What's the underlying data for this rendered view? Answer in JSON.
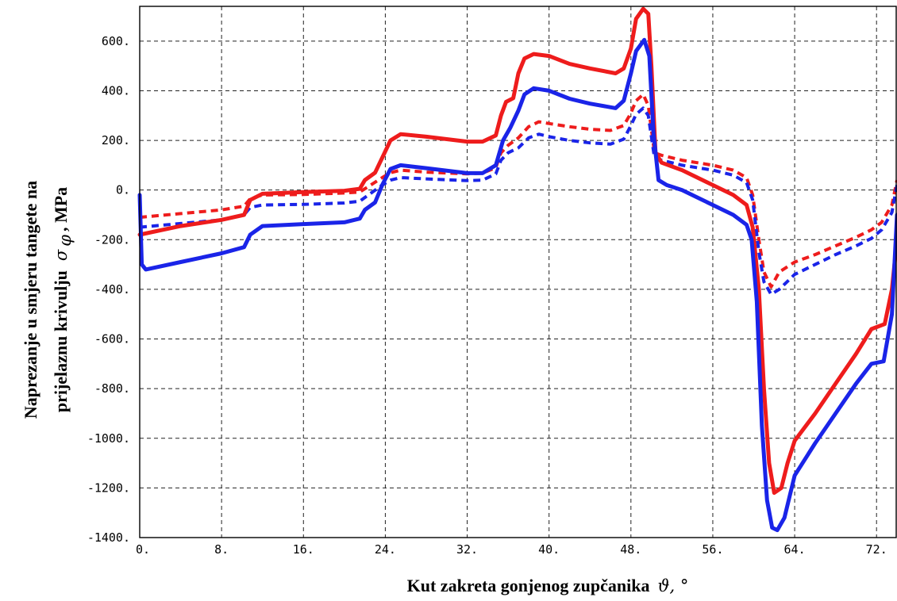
{
  "chart_data": {
    "type": "line",
    "xlabel": "Kut zakreta gonjenog zupčanika ϑ, °",
    "xlabel_text": "Kut zakreta gonjenog zupčanika",
    "xlabel_symbol": "ϑ, °",
    "ylabel_line1": "Naprezanje  u smjeru tangete na",
    "ylabel_line2_text": "prijelaznu krivulju",
    "ylabel_line2_symbol": "σ",
    "ylabel_line2_sub": "φ",
    "ylabel_line2_unit": ", MPa",
    "xlim": [
      0,
      74
    ],
    "ylim": [
      -1400,
      740
    ],
    "x_ticks": [
      0,
      8,
      16,
      24,
      32,
      40,
      48,
      56,
      64,
      72
    ],
    "x_tick_labels": [
      "0.",
      "8.",
      "16.",
      "24.",
      "32.",
      "40.",
      "48.",
      "56.",
      "64.",
      "72."
    ],
    "y_ticks": [
      600,
      400,
      200,
      0,
      -200,
      -400,
      -600,
      -800,
      -1000,
      -1200,
      -1400
    ],
    "y_tick_labels": [
      "600.",
      "400.",
      "200.",
      "0.",
      "-200.",
      "-400.",
      "-600.",
      "-800.",
      "-1000.",
      "-1200.",
      "-1400."
    ],
    "grid": true,
    "series": [
      {
        "color": "#ee1c1c",
        "style": "solid",
        "points": [
          [
            0,
            -180
          ],
          [
            4,
            -145
          ],
          [
            8,
            -120
          ],
          [
            10.2,
            -100
          ],
          [
            10.8,
            -40
          ],
          [
            12,
            -15
          ],
          [
            16,
            -8
          ],
          [
            20,
            -3
          ],
          [
            21.5,
            5
          ],
          [
            22,
            40
          ],
          [
            23,
            70
          ],
          [
            23.7,
            130
          ],
          [
            24.5,
            200
          ],
          [
            25.5,
            225
          ],
          [
            28,
            215
          ],
          [
            32,
            195
          ],
          [
            33.5,
            195
          ],
          [
            34.8,
            220
          ],
          [
            35.3,
            300
          ],
          [
            35.8,
            355
          ],
          [
            36.5,
            370
          ],
          [
            37,
            470
          ],
          [
            37.6,
            530
          ],
          [
            38.5,
            548
          ],
          [
            40,
            540
          ],
          [
            42,
            508
          ],
          [
            44,
            490
          ],
          [
            46.5,
            470
          ],
          [
            47.3,
            490
          ],
          [
            48,
            570
          ],
          [
            48.5,
            690
          ],
          [
            49.2,
            730
          ],
          [
            49.7,
            710
          ],
          [
            50,
            500
          ],
          [
            50.4,
            150
          ],
          [
            51,
            110
          ],
          [
            53,
            80
          ],
          [
            56,
            20
          ],
          [
            58,
            -20
          ],
          [
            59.3,
            -60
          ],
          [
            59.9,
            -150
          ],
          [
            60.5,
            -400
          ],
          [
            61,
            -800
          ],
          [
            61.5,
            -1100
          ],
          [
            62,
            -1220
          ],
          [
            62.7,
            -1200
          ],
          [
            63.3,
            -1100
          ],
          [
            64,
            -1010
          ],
          [
            66,
            -900
          ],
          [
            68,
            -780
          ],
          [
            70,
            -660
          ],
          [
            71.5,
            -560
          ],
          [
            72.8,
            -540
          ],
          [
            73.5,
            -400
          ],
          [
            74,
            -200
          ]
        ]
      },
      {
        "color": "#1a24e8",
        "style": "solid",
        "points": [
          [
            0,
            -20
          ],
          [
            0.2,
            -300
          ],
          [
            0.6,
            -320
          ],
          [
            4,
            -290
          ],
          [
            8,
            -255
          ],
          [
            10.2,
            -230
          ],
          [
            10.8,
            -180
          ],
          [
            12,
            -145
          ],
          [
            16,
            -137
          ],
          [
            20,
            -130
          ],
          [
            21.5,
            -115
          ],
          [
            22,
            -80
          ],
          [
            23,
            -50
          ],
          [
            23.7,
            20
          ],
          [
            24.5,
            85
          ],
          [
            25.5,
            100
          ],
          [
            28,
            88
          ],
          [
            32,
            68
          ],
          [
            33.5,
            68
          ],
          [
            34.8,
            100
          ],
          [
            35.5,
            200
          ],
          [
            36.2,
            250
          ],
          [
            37,
            320
          ],
          [
            37.6,
            385
          ],
          [
            38.5,
            410
          ],
          [
            40,
            400
          ],
          [
            42,
            368
          ],
          [
            44,
            348
          ],
          [
            46.5,
            330
          ],
          [
            47.3,
            360
          ],
          [
            48,
            470
          ],
          [
            48.5,
            560
          ],
          [
            49.3,
            605
          ],
          [
            49.8,
            540
          ],
          [
            50.2,
            230
          ],
          [
            50.7,
            40
          ],
          [
            51.5,
            20
          ],
          [
            53,
            0
          ],
          [
            56,
            -60
          ],
          [
            58,
            -100
          ],
          [
            59.3,
            -140
          ],
          [
            59.8,
            -200
          ],
          [
            60.3,
            -450
          ],
          [
            60.8,
            -950
          ],
          [
            61.3,
            -1250
          ],
          [
            61.8,
            -1360
          ],
          [
            62.3,
            -1370
          ],
          [
            63,
            -1320
          ],
          [
            64,
            -1150
          ],
          [
            66,
            -1020
          ],
          [
            68,
            -900
          ],
          [
            70,
            -780
          ],
          [
            71.5,
            -700
          ],
          [
            72.7,
            -690
          ],
          [
            73.5,
            -500
          ],
          [
            74,
            -100
          ]
        ]
      },
      {
        "color": "#ee1c1c",
        "style": "dashed",
        "points": [
          [
            0,
            -110
          ],
          [
            4,
            -95
          ],
          [
            8,
            -80
          ],
          [
            10.2,
            -65
          ],
          [
            10.8,
            -35
          ],
          [
            12,
            -20
          ],
          [
            16,
            -18
          ],
          [
            20,
            -12
          ],
          [
            21.5,
            -8
          ],
          [
            22,
            5
          ],
          [
            23.7,
            50
          ],
          [
            24.5,
            70
          ],
          [
            25.5,
            80
          ],
          [
            28,
            72
          ],
          [
            32,
            65
          ],
          [
            33.5,
            68
          ],
          [
            34.8,
            90
          ],
          [
            35.3,
            150
          ],
          [
            36,
            180
          ],
          [
            37,
            210
          ],
          [
            38,
            255
          ],
          [
            39,
            275
          ],
          [
            40,
            268
          ],
          [
            42,
            255
          ],
          [
            44,
            245
          ],
          [
            46,
            240
          ],
          [
            47.3,
            260
          ],
          [
            48,
            310
          ],
          [
            48.5,
            360
          ],
          [
            49.2,
            385
          ],
          [
            49.7,
            340
          ],
          [
            50.3,
            150
          ],
          [
            51,
            140
          ],
          [
            53,
            120
          ],
          [
            56,
            100
          ],
          [
            58,
            80
          ],
          [
            59.3,
            50
          ],
          [
            59.9,
            -20
          ],
          [
            60.5,
            -200
          ],
          [
            61,
            -330
          ],
          [
            61.7,
            -390
          ],
          [
            62.5,
            -330
          ],
          [
            64,
            -290
          ],
          [
            66,
            -260
          ],
          [
            68,
            -225
          ],
          [
            70,
            -190
          ],
          [
            71.5,
            -160
          ],
          [
            72.5,
            -130
          ],
          [
            73.5,
            -60
          ],
          [
            74,
            40
          ]
        ]
      },
      {
        "color": "#1a24e8",
        "style": "dashed",
        "points": [
          [
            0,
            -150
          ],
          [
            4,
            -135
          ],
          [
            8,
            -120
          ],
          [
            10.2,
            -100
          ],
          [
            10.8,
            -70
          ],
          [
            12,
            -60
          ],
          [
            16,
            -58
          ],
          [
            20,
            -52
          ],
          [
            21.5,
            -45
          ],
          [
            22,
            -30
          ],
          [
            23.7,
            20
          ],
          [
            24.5,
            40
          ],
          [
            25.5,
            50
          ],
          [
            28,
            45
          ],
          [
            32,
            38
          ],
          [
            33.5,
            40
          ],
          [
            34.8,
            65
          ],
          [
            35.3,
            120
          ],
          [
            36,
            150
          ],
          [
            37,
            170
          ],
          [
            38,
            210
          ],
          [
            39,
            225
          ],
          [
            40,
            215
          ],
          [
            42,
            200
          ],
          [
            44,
            190
          ],
          [
            46,
            185
          ],
          [
            47.3,
            205
          ],
          [
            48,
            260
          ],
          [
            48.5,
            305
          ],
          [
            49.2,
            330
          ],
          [
            49.7,
            300
          ],
          [
            50.3,
            130
          ],
          [
            51,
            120
          ],
          [
            53,
            100
          ],
          [
            56,
            80
          ],
          [
            58,
            60
          ],
          [
            59.3,
            30
          ],
          [
            59.9,
            -40
          ],
          [
            60.5,
            -250
          ],
          [
            61,
            -370
          ],
          [
            61.7,
            -420
          ],
          [
            62.5,
            -400
          ],
          [
            64,
            -340
          ],
          [
            66,
            -300
          ],
          [
            68,
            -260
          ],
          [
            70,
            -225
          ],
          [
            71.5,
            -195
          ],
          [
            72.5,
            -160
          ],
          [
            73.5,
            -90
          ],
          [
            74,
            20
          ]
        ]
      }
    ]
  }
}
